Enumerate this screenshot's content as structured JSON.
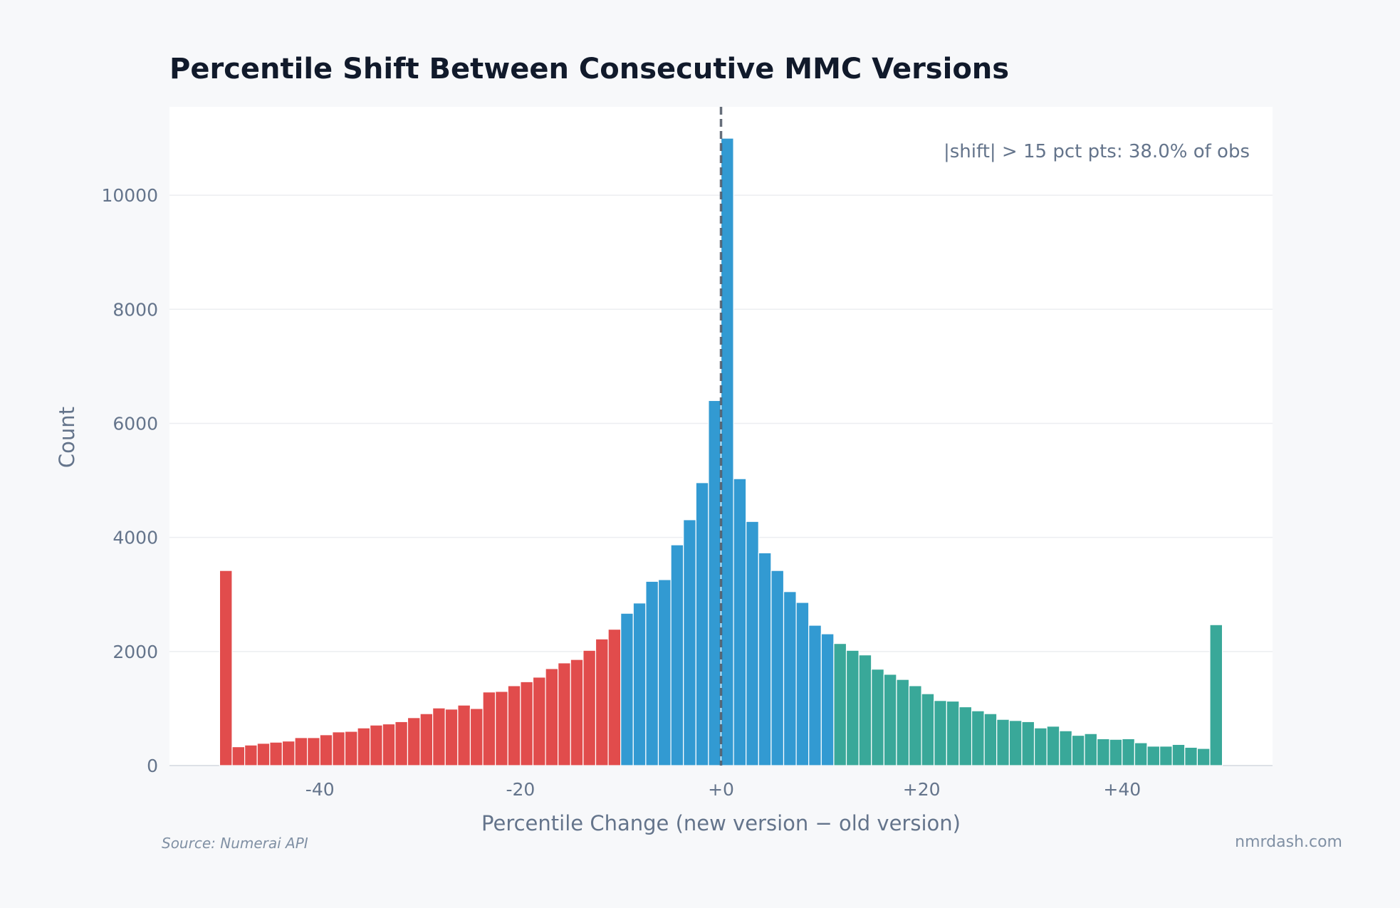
{
  "chart_data": {
    "type": "bar",
    "title": "Percentile Shift Between Consecutive MMC Versions",
    "xlabel": "Percentile Change (new version − old version)",
    "ylabel": "Count",
    "xlim": [
      -55,
      55
    ],
    "ylim": [
      0,
      11550
    ],
    "bin_start": -50,
    "bin_width": 1.25,
    "x_ticks": [
      -40,
      -20,
      0,
      20,
      40
    ],
    "x_tick_labels": [
      "-40",
      "-20",
      "+0",
      "+20",
      "+40"
    ],
    "y_ticks": [
      0,
      2000,
      4000,
      6000,
      8000,
      10000
    ],
    "y_tick_labels": [
      "0",
      "2000",
      "4000",
      "6000",
      "8000",
      "10000"
    ],
    "grid": "horizontal",
    "reference_line": {
      "x": 0,
      "style": "dashed",
      "color": "#4b5563"
    },
    "annotation": "|shift| > 15 pct pts: 38.0% of obs",
    "groups": [
      {
        "color": "#e04646",
        "values": [
          3420,
          330,
          360,
          390,
          410,
          430,
          490,
          490,
          540,
          590,
          600,
          660,
          710,
          730,
          770,
          840,
          910,
          1010,
          990,
          1060,
          1000,
          1290,
          1300,
          1400,
          1470,
          1550,
          1700,
          1800,
          1860,
          2020,
          2220,
          2390
        ]
      },
      {
        "color": "#2b97d1",
        "values": [
          2670,
          2850,
          3230,
          3260,
          3870,
          4310,
          4960,
          6400,
          11000,
          5030,
          4280,
          3730,
          3420,
          3050,
          2860,
          2460,
          2310
        ]
      },
      {
        "color": "#33a596",
        "values": [
          2140,
          2020,
          1940,
          1690,
          1600,
          1510,
          1400,
          1260,
          1140,
          1130,
          1030,
          960,
          910,
          810,
          790,
          770,
          660,
          690,
          610,
          530,
          560,
          470,
          460,
          470,
          400,
          340,
          340,
          370,
          320,
          300,
          2470
        ]
      }
    ]
  },
  "footer": {
    "source": "Source: Numerai API",
    "brand": "nmrdash.com"
  },
  "colors": {
    "background": "#f7f8fa",
    "plot_background": "#ffffff",
    "title": "#111a2b",
    "axis_text": "#64748b"
  }
}
